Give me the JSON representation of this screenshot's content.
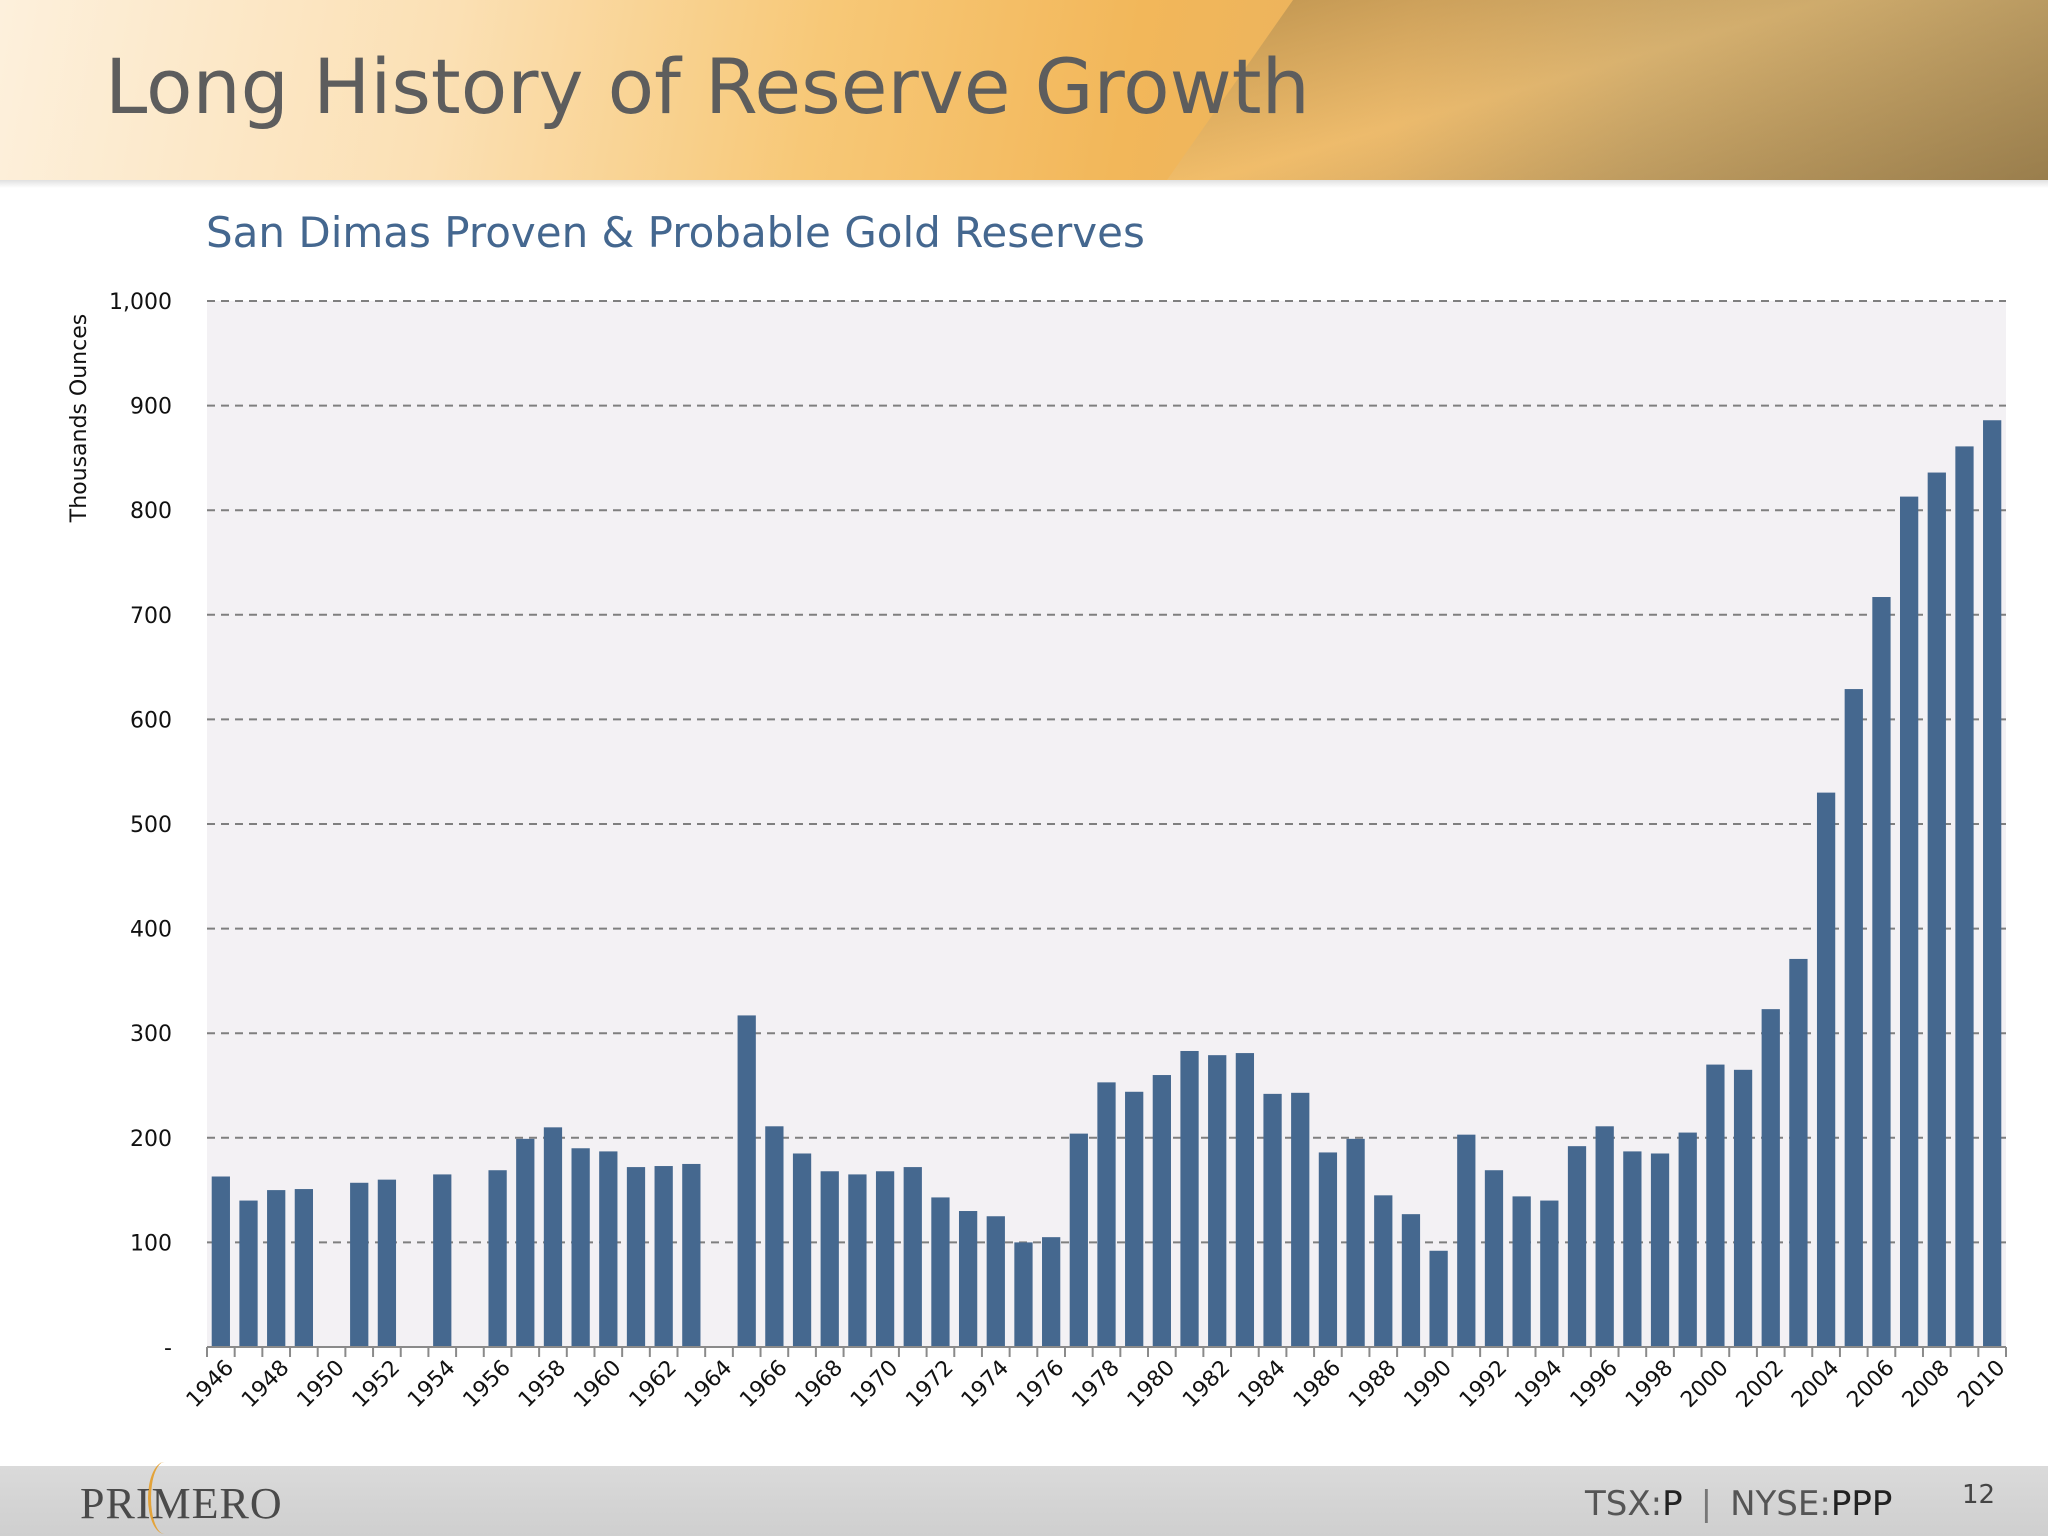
{
  "slide": {
    "title": "Long History of Reserve Growth",
    "page_number": "12"
  },
  "footer": {
    "logo_text": "PRIMERO",
    "ticker_tsx_label": "TSX:",
    "ticker_tsx_value": "P",
    "ticker_separator": "|",
    "ticker_nyse_label": "NYSE:",
    "ticker_nyse_value": "PPP"
  },
  "colors": {
    "bar": "#45688f",
    "plot_background": "#f3f1f4",
    "grid": "#7f7f7f",
    "subtitle": "#44678f"
  },
  "chart_data": {
    "type": "bar",
    "title": "San Dimas Proven & Probable Gold Reserves",
    "xlabel": "",
    "ylabel": "Thousands Ounces",
    "ylim": [
      0,
      1000
    ],
    "yticks": [
      0,
      100,
      200,
      300,
      400,
      500,
      600,
      700,
      800,
      900,
      1000
    ],
    "ytick_labels": [
      "-",
      "100",
      "200",
      "300",
      "400",
      "500",
      "600",
      "700",
      "800",
      "900",
      "1,000"
    ],
    "grid": true,
    "legend": "none",
    "categories": [
      "1946",
      "1947",
      "1948",
      "1949",
      "1950",
      "1951",
      "1952",
      "1953",
      "1954",
      "1955",
      "1956",
      "1957",
      "1958",
      "1959",
      "1960",
      "1961",
      "1962",
      "1963",
      "1964",
      "1965",
      "1966",
      "1967",
      "1968",
      "1969",
      "1970",
      "1971",
      "1972",
      "1973",
      "1974",
      "1975",
      "1976",
      "1977",
      "1978",
      "1979",
      "1980",
      "1981",
      "1982",
      "1983",
      "1984",
      "1985",
      "1986",
      "1987",
      "1988",
      "1989",
      "1990",
      "1991",
      "1992",
      "1993",
      "1994",
      "1995",
      "1996",
      "1997",
      "1998",
      "1999",
      "2000",
      "2001",
      "2002",
      "2003",
      "2004",
      "2005",
      "2006",
      "2007",
      "2008",
      "2009",
      "2010"
    ],
    "xtick_labels": [
      "1946",
      "1948",
      "1950",
      "1952",
      "1954",
      "1956",
      "1958",
      "1960",
      "1962",
      "1964",
      "1966",
      "1968",
      "1970",
      "1972",
      "1974",
      "1976",
      "1978",
      "1980",
      "1982",
      "1984",
      "1986",
      "1988",
      "1990",
      "1992",
      "1994",
      "1996",
      "1998",
      "2000",
      "2002",
      "2004",
      "2006",
      "2008",
      "2010"
    ],
    "values": [
      163,
      140,
      150,
      151,
      null,
      157,
      160,
      null,
      165,
      null,
      169,
      199,
      210,
      190,
      187,
      172,
      173,
      175,
      null,
      317,
      211,
      185,
      168,
      165,
      168,
      172,
      143,
      130,
      125,
      100,
      105,
      204,
      253,
      244,
      260,
      283,
      279,
      281,
      242,
      243,
      186,
      199,
      145,
      127,
      92,
      203,
      169,
      144,
      140,
      192,
      211,
      187,
      185,
      205,
      270,
      265,
      323,
      371,
      530,
      629,
      717,
      813,
      836,
      861,
      886
    ]
  }
}
